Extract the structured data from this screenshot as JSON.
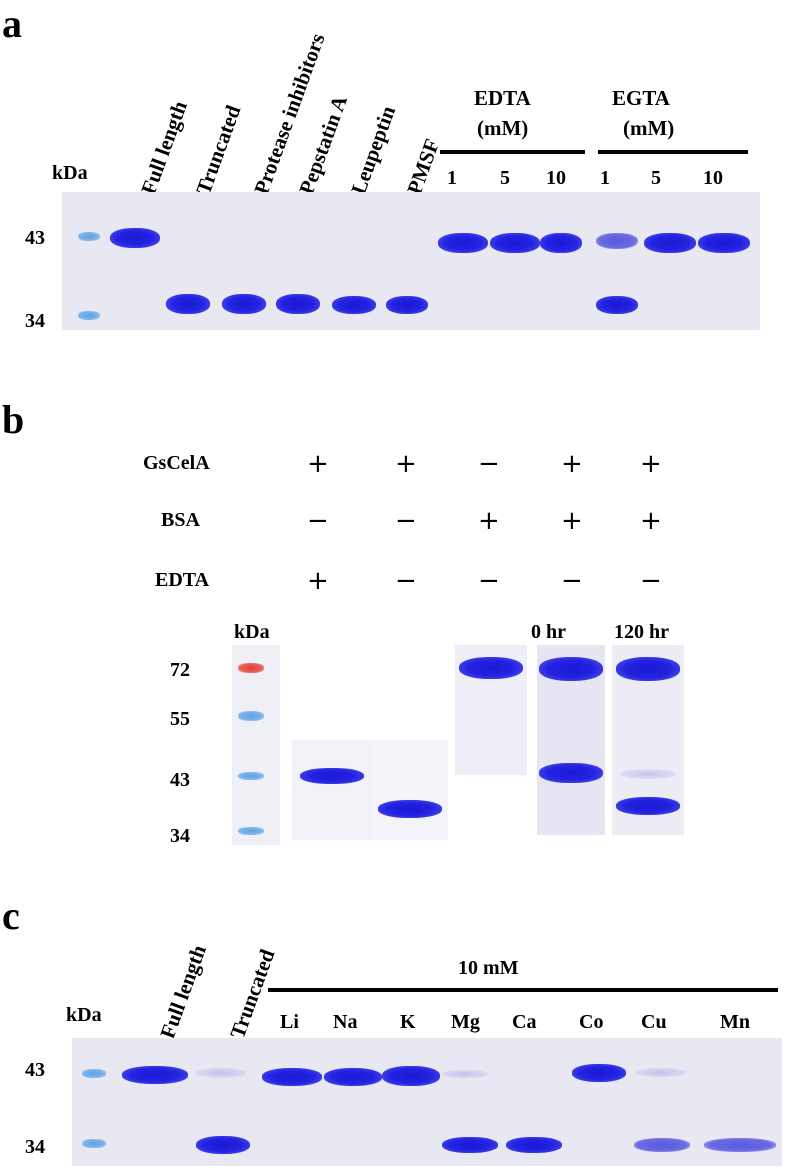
{
  "panel_a": {
    "letter": "a",
    "kda": "kDa",
    "mw": [
      "43",
      "34"
    ],
    "lanes": [
      "Full length",
      "Truncated",
      "Protease inhibitors",
      "Pepstatin A",
      "Leupeptin",
      "PMSF"
    ],
    "edta": {
      "label1": "EDTA",
      "label2": "(mM)",
      "concs": [
        "1",
        "5",
        "10"
      ]
    },
    "egta": {
      "label1": "EGTA",
      "label2": "(mM)",
      "concs": [
        "1",
        "5",
        "10"
      ]
    }
  },
  "panel_b": {
    "letter": "b",
    "row_labels": [
      "GsCelA",
      "BSA",
      "EDTA"
    ],
    "signs": [
      [
        "+",
        "+",
        "−",
        "+",
        "+"
      ],
      [
        "−",
        "−",
        "+",
        "+",
        "+"
      ],
      [
        "+",
        "−",
        "−",
        "−",
        "−"
      ]
    ],
    "kda": "kDa",
    "mw": [
      "72",
      "55",
      "43",
      "34"
    ],
    "times": [
      "0 hr",
      "120 hr"
    ]
  },
  "panel_c": {
    "letter": "c",
    "kda": "kDa",
    "mw": [
      "43",
      "34"
    ],
    "lanes": [
      "Full length",
      "Truncated"
    ],
    "conc": "10 mM",
    "ions": [
      "Li",
      "Na",
      "K",
      "Mg",
      "Ca",
      "Co",
      "Cu",
      "Mn"
    ]
  }
}
